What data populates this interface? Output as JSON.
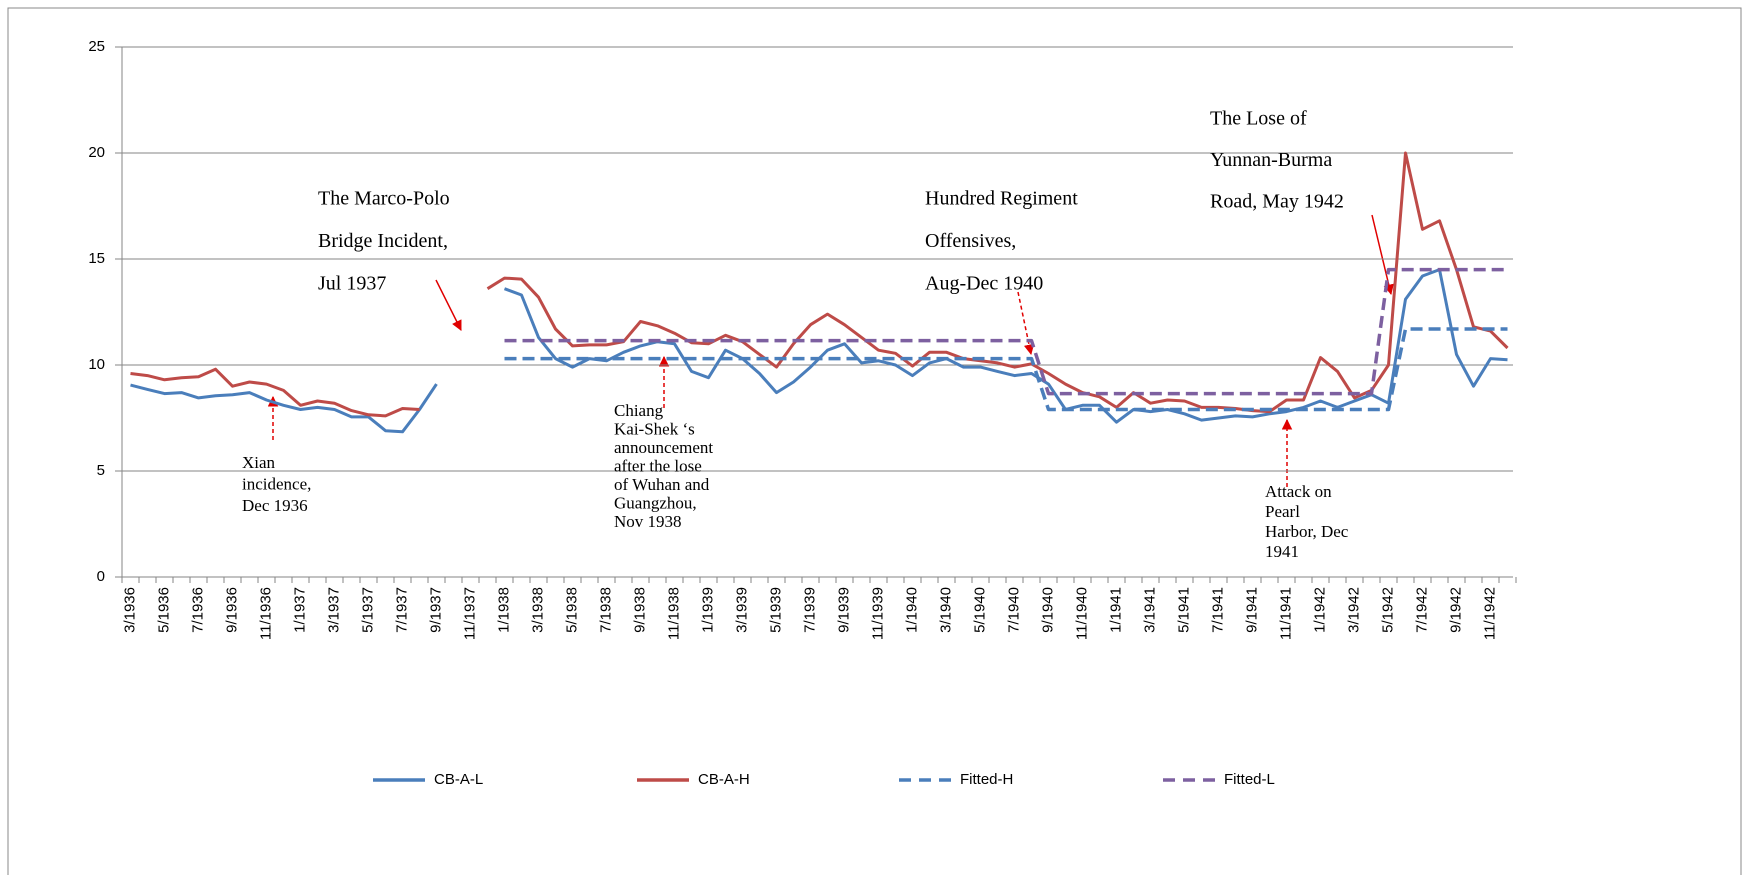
{
  "chart_data": {
    "type": "line",
    "categories": [
      "3/1936",
      null,
      "5/1936",
      null,
      "7/1936",
      null,
      "9/1936",
      null,
      "11/1936",
      null,
      "1/1937",
      null,
      "3/1937",
      null,
      "5/1937",
      null,
      "7/1937",
      null,
      "9/1937",
      null,
      "11/1937",
      null,
      "1/1938",
      null,
      "3/1938",
      null,
      "5/1938",
      null,
      "7/1938",
      null,
      "9/1938",
      null,
      "11/1938",
      null,
      "1/1939",
      null,
      "3/1939",
      null,
      "5/1939",
      null,
      "7/1939",
      null,
      "9/1939",
      null,
      "11/1939",
      null,
      "1/1940",
      null,
      "3/1940",
      null,
      "5/1940",
      null,
      "7/1940",
      null,
      "9/1940",
      null,
      "11/1940",
      null,
      "1/1941",
      null,
      "3/1941",
      null,
      "5/1941",
      null,
      "7/1941",
      null,
      "9/1941",
      null,
      "11/1941",
      null,
      "1/1942",
      null,
      "3/1942",
      null,
      "5/1942",
      null,
      "7/1942",
      null,
      "9/1942",
      null,
      "11/1942",
      null
    ],
    "series": [
      {
        "name": "CB-A-L",
        "color": "#4a7ebb",
        "dashed": false,
        "values": [
          9.05,
          8.85,
          8.65,
          8.7,
          8.45,
          8.55,
          8.6,
          8.7,
          8.35,
          8.1,
          7.9,
          8.0,
          7.9,
          7.55,
          7.55,
          6.9,
          6.85,
          7.9,
          9.1,
          null,
          null,
          null,
          13.6,
          13.3,
          11.3,
          10.3,
          9.9,
          10.3,
          10.2,
          10.6,
          10.9,
          11.1,
          11.0,
          9.7,
          9.4,
          10.7,
          10.3,
          9.6,
          8.7,
          9.2,
          9.9,
          10.7,
          11.0,
          10.1,
          10.2,
          10.0,
          9.5,
          10.1,
          10.3,
          9.9,
          9.9,
          9.7,
          9.5,
          9.6,
          9.1,
          7.9,
          8.1,
          8.1,
          7.3,
          7.9,
          7.8,
          7.9,
          7.7,
          7.4,
          7.5,
          7.6,
          7.55,
          7.7,
          7.8,
          8.0,
          8.3,
          8.0,
          8.3,
          8.6,
          8.2,
          13.1,
          14.2,
          14.5,
          10.5,
          9.0,
          10.3,
          10.25
        ]
      },
      {
        "name": "CB-A-H",
        "color": "#be4b48",
        "dashed": false,
        "values": [
          9.6,
          9.5,
          9.3,
          9.4,
          9.45,
          9.8,
          9.0,
          9.2,
          9.1,
          8.8,
          8.1,
          8.3,
          8.2,
          7.85,
          7.65,
          7.6,
          7.95,
          7.9,
          null,
          null,
          null,
          13.6,
          14.1,
          14.05,
          13.2,
          11.7,
          10.9,
          10.95,
          10.95,
          11.1,
          12.05,
          11.85,
          11.5,
          11.05,
          11.0,
          11.4,
          11.1,
          10.5,
          9.9,
          11.0,
          11.9,
          12.4,
          11.9,
          11.3,
          10.7,
          10.55,
          9.95,
          10.6,
          10.6,
          10.3,
          10.2,
          10.1,
          9.9,
          10.05,
          9.6,
          9.1,
          8.7,
          8.5,
          8.0,
          8.7,
          8.2,
          8.35,
          8.3,
          8.0,
          8.0,
          7.95,
          7.85,
          7.8,
          8.35,
          8.35,
          10.35,
          9.7,
          8.45,
          8.8,
          10.0,
          20.0,
          16.4,
          16.8,
          14.5,
          11.8,
          11.6,
          10.8
        ]
      },
      {
        "name": "Fitted-H",
        "color": "#4a7ebb",
        "dashed": true,
        "values": [
          null,
          null,
          null,
          null,
          null,
          null,
          null,
          null,
          null,
          null,
          null,
          null,
          null,
          null,
          null,
          null,
          null,
          null,
          null,
          null,
          null,
          null,
          10.3,
          10.3,
          10.3,
          10.3,
          10.3,
          10.3,
          10.3,
          10.3,
          10.3,
          10.3,
          10.3,
          10.3,
          10.3,
          10.3,
          10.3,
          10.3,
          10.3,
          10.3,
          10.3,
          10.3,
          10.3,
          10.3,
          10.3,
          10.3,
          10.3,
          10.3,
          10.3,
          10.3,
          10.3,
          10.3,
          10.3,
          10.3,
          7.9,
          7.9,
          7.9,
          7.9,
          7.9,
          7.9,
          7.9,
          7.9,
          7.9,
          7.9,
          7.9,
          7.9,
          7.9,
          7.9,
          7.9,
          7.9,
          7.9,
          7.9,
          7.9,
          7.9,
          7.9,
          11.7,
          11.7,
          11.7,
          11.7,
          11.7,
          11.7,
          11.7
        ]
      },
      {
        "name": "Fitted-L",
        "color": "#7d60a0",
        "dashed": true,
        "values": [
          null,
          null,
          null,
          null,
          null,
          null,
          null,
          null,
          null,
          null,
          null,
          null,
          null,
          null,
          null,
          null,
          null,
          null,
          null,
          null,
          null,
          null,
          11.15,
          11.15,
          11.15,
          11.15,
          11.15,
          11.15,
          11.15,
          11.15,
          11.15,
          11.15,
          11.15,
          11.15,
          11.15,
          11.15,
          11.15,
          11.15,
          11.15,
          11.15,
          11.15,
          11.15,
          11.15,
          11.15,
          11.15,
          11.15,
          11.15,
          11.15,
          11.15,
          11.15,
          11.15,
          11.15,
          11.15,
          11.15,
          8.65,
          8.65,
          8.65,
          8.65,
          8.65,
          8.65,
          8.65,
          8.65,
          8.65,
          8.65,
          8.65,
          8.65,
          8.65,
          8.65,
          8.65,
          8.65,
          8.65,
          8.65,
          8.65,
          8.65,
          14.5,
          14.5,
          14.5,
          14.5,
          14.5,
          14.5,
          14.5,
          14.5
        ]
      }
    ],
    "ylim": [
      0,
      25
    ],
    "yticks": [
      0,
      5,
      10,
      15,
      20,
      25
    ],
    "grid": true,
    "legend": "bottom",
    "annotations": [
      {
        "lines": [
          "The Marco-Polo",
          "Bridge Incident,",
          "Jul 1937"
        ]
      },
      {
        "lines": [
          "Xian",
          "incidence,",
          "Dec 1936"
        ]
      },
      {
        "lines": [
          "Chiang",
          "Kai-Shek ‘s",
          "announcement",
          "after the lose",
          "of Wuhan and",
          "Guangzhou,",
          "Nov 1938"
        ]
      },
      {
        "lines": [
          "Hundred Regiment",
          "Offensives,",
          "Aug-Dec 1940"
        ]
      },
      {
        "lines": [
          "The Lose of",
          "Yunnan-Burma",
          "Road, May 1942"
        ]
      },
      {
        "lines": [
          "Attack on",
          "Pearl",
          "Harbor, Dec",
          "1941"
        ]
      }
    ]
  }
}
